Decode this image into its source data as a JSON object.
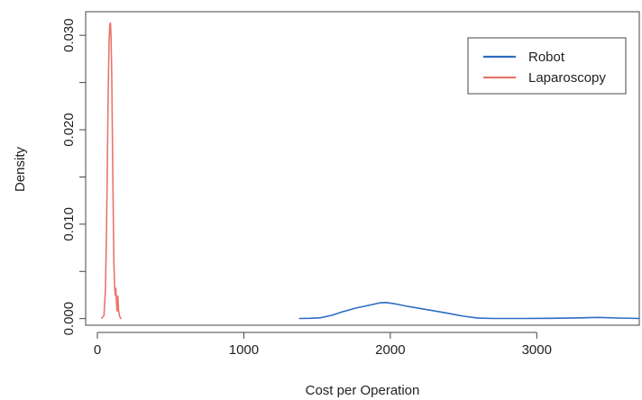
{
  "chart_data": {
    "type": "line",
    "title": "",
    "xlabel": "Cost per Operation",
    "ylabel": "Density",
    "xlim": [
      -80,
      3700
    ],
    "ylim": [
      -0.0007,
      0.0325
    ],
    "xticks": [
      {
        "value": 0,
        "label": "0"
      },
      {
        "value": 1000,
        "label": "1000"
      },
      {
        "value": 2000,
        "label": "2000"
      },
      {
        "value": 3000,
        "label": "3000"
      }
    ],
    "yticks": [
      {
        "value": 0.0,
        "label": "0.000"
      },
      {
        "value": 0.005,
        "label": ""
      },
      {
        "value": 0.01,
        "label": "0.010"
      },
      {
        "value": 0.015,
        "label": ""
      },
      {
        "value": 0.02,
        "label": "0.020"
      },
      {
        "value": 0.025,
        "label": ""
      },
      {
        "value": 0.03,
        "label": "0.030"
      }
    ],
    "grid": false,
    "legend_position": "top-right",
    "series": [
      {
        "name": "Robot",
        "color": "#2f6cc4",
        "points": [
          [
            1380,
            2e-05
          ],
          [
            1450,
            3e-05
          ],
          [
            1520,
            8e-05
          ],
          [
            1600,
            0.00035
          ],
          [
            1680,
            0.00075
          ],
          [
            1760,
            0.0011
          ],
          [
            1850,
            0.0014
          ],
          [
            1930,
            0.00168
          ],
          [
            1970,
            0.0017
          ],
          [
            2020,
            0.0016
          ],
          [
            2100,
            0.00135
          ],
          [
            2200,
            0.00108
          ],
          [
            2300,
            0.00082
          ],
          [
            2400,
            0.00055
          ],
          [
            2500,
            0.00025
          ],
          [
            2600,
            5e-05
          ],
          [
            2700,
            2e-05
          ],
          [
            2900,
            2e-05
          ],
          [
            3100,
            3e-05
          ],
          [
            3300,
            8e-05
          ],
          [
            3420,
            0.00013
          ],
          [
            3550,
            6e-05
          ],
          [
            3700,
            2e-05
          ]
        ]
      },
      {
        "name": "Laparoscopy",
        "color": "#e8766c",
        "points": [
          [
            30,
            5e-05
          ],
          [
            45,
            0.0003
          ],
          [
            55,
            0.003
          ],
          [
            62,
            0.009
          ],
          [
            68,
            0.016
          ],
          [
            74,
            0.024
          ],
          [
            80,
            0.0295
          ],
          [
            85,
            0.0312
          ],
          [
            89,
            0.0313
          ],
          [
            93,
            0.03
          ],
          [
            98,
            0.026
          ],
          [
            103,
            0.019
          ],
          [
            108,
            0.012
          ],
          [
            113,
            0.006
          ],
          [
            118,
            0.0032
          ],
          [
            122,
            0.0025
          ],
          [
            126,
            0.0032
          ],
          [
            130,
            0.0018
          ],
          [
            134,
            0.0008
          ],
          [
            140,
            0.0024
          ],
          [
            144,
            0.001
          ],
          [
            150,
            0.0003
          ],
          [
            160,
            2e-05
          ]
        ]
      }
    ]
  }
}
